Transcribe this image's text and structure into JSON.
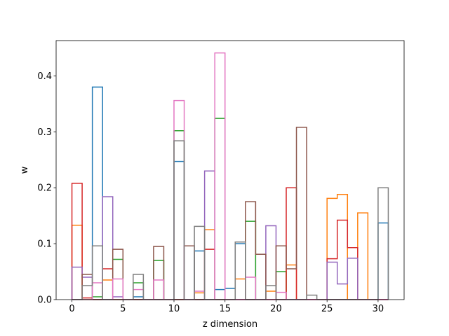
{
  "chart_data": {
    "type": "histogram-step",
    "xlabel": "z dimension",
    "ylabel": "w",
    "xlim": [
      -1.55,
      32.55
    ],
    "ylim": [
      0.0,
      0.4631
    ],
    "x_ticks": [
      0,
      5,
      10,
      15,
      20,
      25,
      30
    ],
    "y_ticks": [
      0.0,
      0.1,
      0.2,
      0.3,
      0.4
    ],
    "x_tick_labels": [
      "0",
      "5",
      "10",
      "15",
      "20",
      "25",
      "30"
    ],
    "y_tick_labels": [
      "0.0",
      "0.1",
      "0.2",
      "0.3",
      "0.4"
    ],
    "bin_edges": [
      0,
      1,
      2,
      3,
      4,
      5,
      6,
      7,
      8,
      9,
      10,
      11,
      12,
      13,
      14,
      15,
      16,
      17,
      18,
      19,
      20,
      21,
      22,
      23,
      24,
      25,
      26,
      27,
      28,
      29,
      30,
      31
    ],
    "grid": false,
    "legend": "none",
    "series": [
      {
        "color": "#1f77b4",
        "values": [
          0.0,
          0.0,
          0.38,
          0.0,
          0.0,
          0.0,
          0.005,
          0.0,
          0.0,
          0.0,
          0.247,
          0.0,
          0.087,
          0.0,
          0.018,
          0.02,
          0.1,
          0.0,
          0.0,
          0.0,
          0.0,
          0.0,
          0.0,
          0.0,
          0.0,
          0.0,
          0.0,
          0.0,
          0.0,
          0.0,
          0.137
        ]
      },
      {
        "color": "#ff7f0e",
        "values": [
          0.133,
          0.0,
          0.0,
          0.035,
          0.0,
          0.0,
          0.0,
          0.0,
          0.0,
          0.0,
          0.0,
          0.0,
          0.012,
          0.125,
          0.0,
          0.0,
          0.037,
          0.0,
          0.0,
          0.015,
          0.0,
          0.062,
          0.0,
          0.0,
          0.0,
          0.181,
          0.188,
          0.0,
          0.155,
          0.0,
          0.0
        ]
      },
      {
        "color": "#2ca02c",
        "values": [
          0.0,
          0.0,
          0.005,
          0.0,
          0.072,
          0.0,
          0.03,
          0.0,
          0.07,
          0.0,
          0.302,
          0.0,
          0.0,
          0.0,
          0.324,
          0.0,
          0.0,
          0.14,
          0.0,
          0.0,
          0.05,
          0.0,
          0.0,
          0.0,
          0.0,
          0.0,
          0.0,
          0.0,
          0.0,
          0.0,
          0.0
        ]
      },
      {
        "color": "#d62728",
        "values": [
          0.208,
          0.003,
          0.0,
          0.055,
          0.0,
          0.0,
          0.0,
          0.0,
          0.0,
          0.0,
          0.0,
          0.0,
          0.0,
          0.09,
          0.0,
          0.0,
          0.0,
          0.0,
          0.0,
          0.0,
          0.0,
          0.2,
          0.0,
          0.0,
          0.0,
          0.073,
          0.142,
          0.093,
          0.0,
          0.0,
          0.0
        ]
      },
      {
        "color": "#9467bd",
        "values": [
          0.058,
          0.04,
          0.0,
          0.184,
          0.005,
          0.0,
          0.0,
          0.0,
          0.0,
          0.0,
          0.0,
          0.0,
          0.0,
          0.23,
          0.0,
          0.0,
          0.0,
          0.0,
          0.0,
          0.132,
          0.0,
          0.0,
          0.0,
          0.0,
          0.0,
          0.067,
          0.028,
          0.074,
          0.0,
          0.0,
          0.0
        ]
      },
      {
        "color": "#8c564b",
        "values": [
          0.0,
          0.045,
          0.0,
          0.0,
          0.09,
          0.0,
          0.0,
          0.0,
          0.095,
          0.0,
          0.0,
          0.096,
          0.0,
          0.0,
          0.0,
          0.0,
          0.0,
          0.175,
          0.081,
          0.0,
          0.096,
          0.055,
          0.308,
          0.0,
          0.0,
          0.0,
          0.0,
          0.0,
          0.0,
          0.0,
          0.0
        ]
      },
      {
        "color": "#e377c2",
        "values": [
          0.0,
          0.0,
          0.03,
          0.0,
          0.037,
          0.0,
          0.018,
          0.0,
          0.035,
          0.0,
          0.356,
          0.0,
          0.015,
          0.0,
          0.441,
          0.0,
          0.0,
          0.04,
          0.0,
          0.0,
          0.013,
          0.0,
          0.0,
          0.0,
          0.0,
          0.0,
          0.0,
          0.0,
          0.0,
          0.0,
          0.0
        ]
      },
      {
        "color": "#7f7f7f",
        "values": [
          0.0,
          0.025,
          0.096,
          0.0,
          0.0,
          0.0,
          0.045,
          0.0,
          0.0,
          0.0,
          0.284,
          0.0,
          0.131,
          0.0,
          0.0,
          0.0,
          0.103,
          0.0,
          0.0,
          0.025,
          0.0,
          0.0,
          0.0,
          0.008,
          0.0,
          0.0,
          0.0,
          0.0,
          0.0,
          0.0,
          0.2
        ]
      }
    ]
  }
}
